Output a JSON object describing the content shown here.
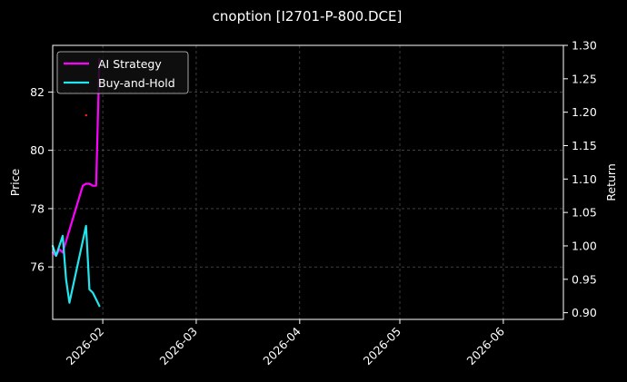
{
  "chart_data": {
    "type": "line",
    "title": "cnoption [I2701-P-800.DCE]",
    "ylabel_left": "Price",
    "ylabel_right": "Return",
    "xlim": [
      "2026-01-17",
      "2026-06-19"
    ],
    "ylim_left": [
      74.2,
      83.6
    ],
    "ylim_right": [
      0.89,
      1.3
    ],
    "x_ticks": [
      "2026-02-01",
      "2026-03-01",
      "2026-04-01",
      "2026-05-01",
      "2026-06-01"
    ],
    "x_tick_labels": [
      "2026-02",
      "2026-03",
      "2026-04",
      "2026-05",
      "2026-06"
    ],
    "y_ticks_left": [
      76,
      78,
      80,
      82
    ],
    "y_ticks_right": [
      0.9,
      0.95,
      1.0,
      1.05,
      1.1,
      1.15,
      1.2,
      1.25,
      1.3
    ],
    "y_tick_labels_right": [
      "0.90",
      "0.95",
      "1.00",
      "1.05",
      "1.10",
      "1.15",
      "1.20",
      "1.25",
      "1.30"
    ],
    "grid": true,
    "legend_position": "top-left",
    "series": [
      {
        "name": "AI Strategy",
        "axis": "right",
        "color": "#ff00ff",
        "x": [
          "2026-01-17",
          "2026-01-18",
          "2026-01-19",
          "2026-01-20",
          "2026-01-23",
          "2026-01-26",
          "2026-01-27",
          "2026-01-28",
          "2026-01-29",
          "2026-01-30",
          "2026-01-31"
        ],
        "values": [
          0.99,
          0.985,
          0.995,
          0.99,
          1.04,
          1.09,
          1.093,
          1.093,
          1.09,
          1.09,
          1.28
        ]
      },
      {
        "name": "Buy-and-Hold",
        "axis": "right",
        "color": "#22e5ee",
        "x": [
          "2026-01-17",
          "2026-01-18",
          "2026-01-19",
          "2026-01-20",
          "2026-01-21",
          "2026-01-22",
          "2026-01-27",
          "2026-01-28",
          "2026-01-29",
          "2026-01-30",
          "2026-01-31"
        ],
        "values": [
          1.0,
          0.985,
          1.0,
          1.015,
          0.95,
          0.915,
          1.03,
          0.935,
          0.93,
          0.92,
          0.91
        ]
      }
    ],
    "price_points": {
      "color": "#ff2020",
      "x": [
        "2026-01-27"
      ],
      "values": [
        81.2
      ]
    }
  }
}
